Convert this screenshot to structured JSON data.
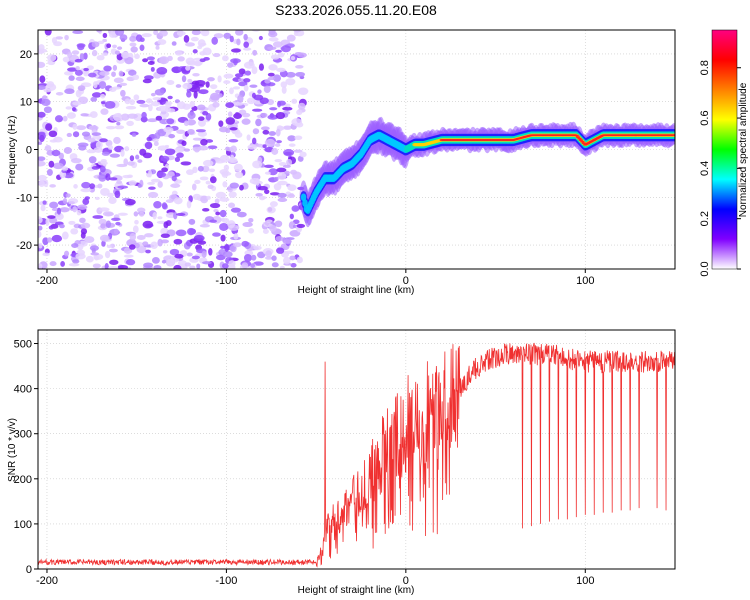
{
  "figure_title": "S233.2026.055.11.20.E08",
  "chart_data": [
    {
      "type": "heatmap",
      "xlabel": "Height of straight line (km)",
      "ylabel": "Frequency (Hz)",
      "xlim": [
        -205,
        150
      ],
      "ylim": [
        -25,
        25
      ],
      "x_ticks": [
        -200,
        -100,
        0,
        100
      ],
      "y_ticks": [
        -20,
        -10,
        0,
        10,
        20
      ],
      "noise_region_x": [
        -205,
        -57
      ],
      "signal_track": {
        "x": [
          -57,
          -55,
          -50,
          -45,
          -40,
          -35,
          -30,
          -25,
          -20,
          -15,
          -10,
          -5,
          0,
          5,
          10,
          20,
          30,
          40,
          50,
          60,
          70,
          80,
          90,
          95,
          100,
          105,
          110,
          120,
          130,
          140,
          150
        ],
        "frequency_hz": [
          -10,
          -13,
          -9,
          -6,
          -6,
          -4,
          -3,
          -1,
          2,
          3,
          2,
          1,
          0,
          1,
          1,
          2,
          2,
          2,
          2,
          2,
          3,
          3,
          3,
          3,
          1,
          2,
          3,
          3,
          3,
          3,
          3
        ]
      },
      "colorbar": {
        "label": "Normalized spectral amplitude",
        "range": [
          0,
          0.95
        ],
        "ticks": [
          0.0,
          0.2,
          0.4,
          0.6,
          0.8
        ],
        "tick_labels": [
          "0.0",
          "0.2",
          "0.4",
          "0.6",
          "0.8"
        ],
        "colors": [
          "#ffffff",
          "#8000ff",
          "#0000ff",
          "#00ffff",
          "#00ff00",
          "#ffff00",
          "#ff8000",
          "#ff0000",
          "#ff0080"
        ]
      },
      "grid": true
    },
    {
      "type": "line",
      "xlabel": "Height of straight line (km)",
      "ylabel": "SNR (10 * v/v)",
      "xlim": [
        -205,
        150
      ],
      "ylim": [
        0,
        530
      ],
      "x_ticks": [
        -200,
        -100,
        0,
        100
      ],
      "y_ticks": [
        0,
        100,
        200,
        300,
        400,
        500
      ],
      "color": "#f03030",
      "grid": true,
      "series": [
        {
          "baseline": {
            "x": [
              -205,
              -50,
              -47,
              -45,
              -40,
              -30,
              -20,
              -15,
              -10,
              0,
              10,
              20,
              30,
              40,
              50,
              60,
              80,
              100,
              120,
              150
            ],
            "snr": [
              15,
              15,
              40,
              90,
              110,
              150,
              200,
              250,
              270,
              320,
              340,
              350,
              400,
              450,
              470,
              480,
              475,
              460,
              460,
              460
            ]
          },
          "spikes": {
            "x": [
              -45,
              -39,
              -35,
              -28,
              -22,
              -17,
              -12,
              -8,
              -3,
              3,
              8,
              13,
              18,
              65,
              70,
              75,
              80,
              85,
              90,
              95,
              100,
              105,
              110,
              115,
              120,
              125,
              130,
              140,
              145
            ],
            "snr": [
              460,
              80,
              60,
              80,
              90,
              80,
              100,
              130,
              120,
              150,
              150,
              180,
              220,
              90,
              95,
              100,
              105,
              110,
              110,
              115,
              120,
              120,
              125,
              125,
              130,
              130,
              135,
              135,
              130
            ]
          }
        }
      ]
    }
  ]
}
